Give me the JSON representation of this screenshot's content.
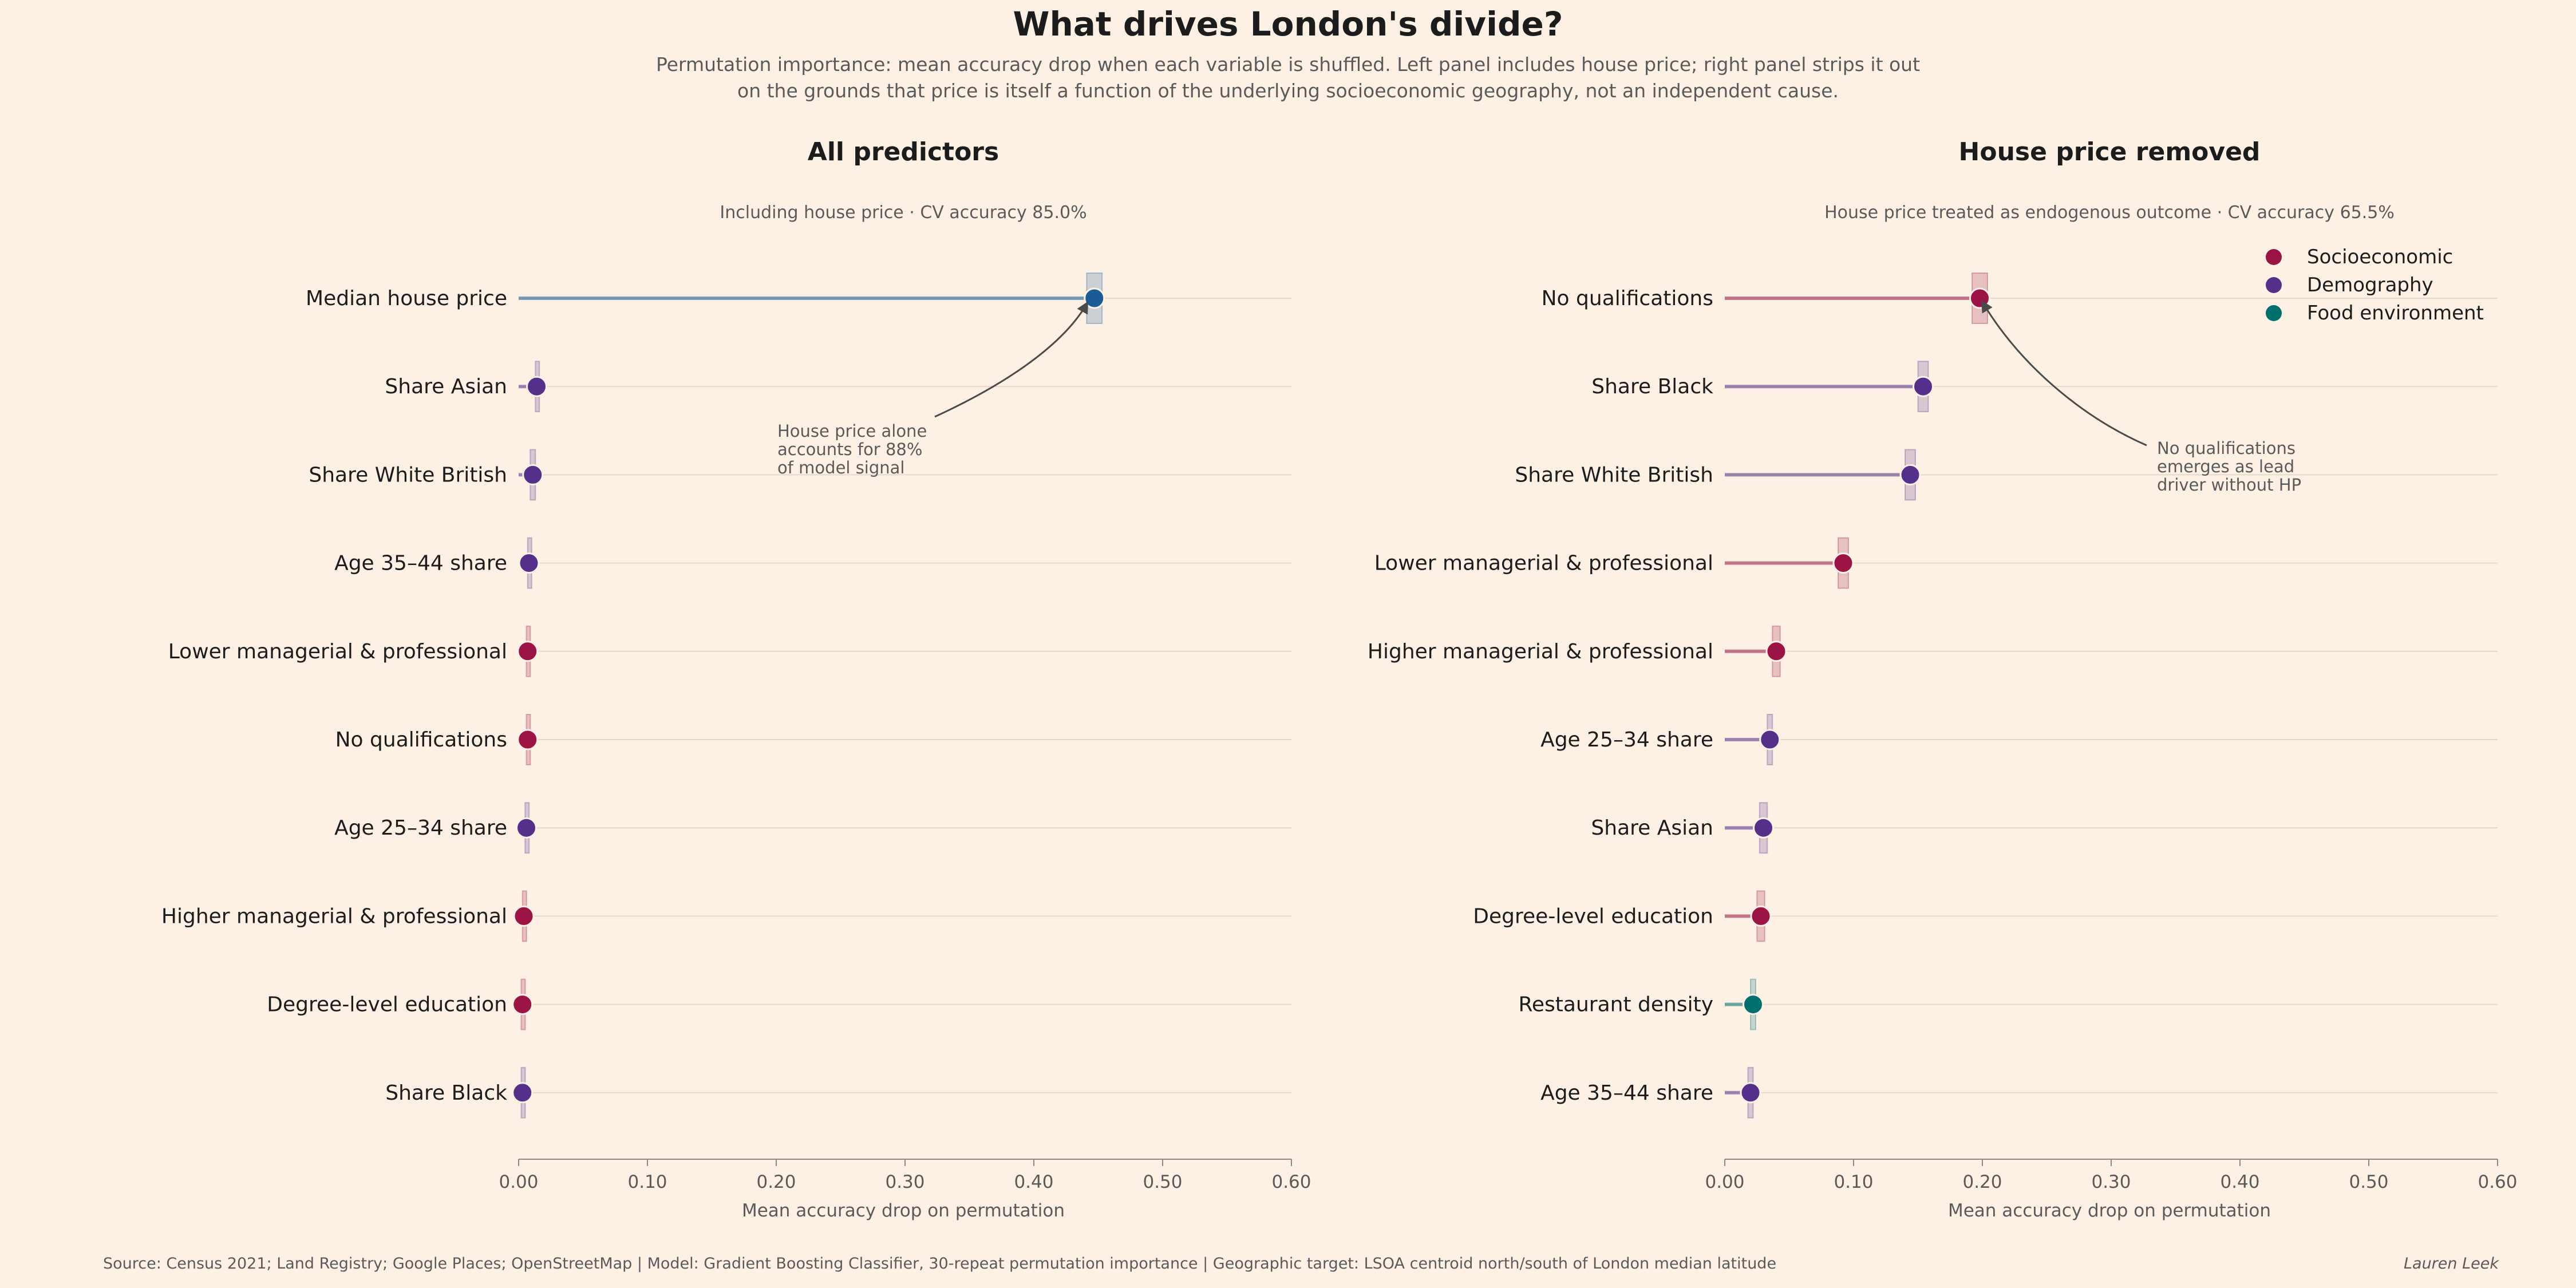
{
  "title": "What drives London's divide?",
  "subtitle_lines": [
    "Permutation importance: mean accuracy drop when each variable is shuffled.  Left panel includes house price; right panel strips it out",
    "on the grounds that price is itself a function of the underlying socioeconomic geography, not an independent cause."
  ],
  "source": "Source: Census 2021; Land Registry; Google Places; OpenStreetMap  | Model: Gradient Boosting Classifier, 30-repeat permutation importance  | Geographic target: LSOA centroid north/south of London median latitude",
  "author": "Lauren Leek",
  "colors": {
    "Socioeconomic": "#9c1446",
    "Demography": "#55308a",
    "Food environment": "#00706e",
    "House price": "#1a5a96"
  },
  "legend": {
    "placement": "top-right",
    "entries": [
      "Socioeconomic",
      "Demography",
      "Food environment"
    ]
  },
  "chart_data": [
    {
      "type": "dot",
      "title": "All predictors",
      "subtitle": "Including house price  ·  CV accuracy 85.0%",
      "xlabel": "Mean accuracy drop on permutation",
      "xlim": [
        0,
        0.6
      ],
      "xticks": [
        "0.00",
        "0.10",
        "0.20",
        "0.30",
        "0.40",
        "0.50",
        "0.60"
      ],
      "grid": true,
      "categories": [
        "Median house price",
        "Share Asian",
        "Share White British",
        "Age 35–44 share",
        "Lower managerial & professional",
        "No qualifications",
        "Age 25–34 share",
        "Higher managerial & professional",
        "Degree-level education",
        "Share Black"
      ],
      "groups": [
        "House price",
        "Demography",
        "Demography",
        "Demography",
        "Socioeconomic",
        "Socioeconomic",
        "Demography",
        "Socioeconomic",
        "Socioeconomic",
        "Demography"
      ],
      "values": [
        0.447,
        0.014,
        0.011,
        0.008,
        0.007,
        0.007,
        0.006,
        0.004,
        0.003,
        0.003
      ],
      "errors": [
        0.006,
        0.001,
        0.002,
        0.001,
        0.001,
        0.001,
        0.001,
        0.001,
        0.001,
        0.001
      ],
      "annotation": {
        "lines": [
          "House price alone",
          "accounts for 88%",
          "of model signal"
        ],
        "target_index": 0
      }
    },
    {
      "type": "dot",
      "title": "House price removed",
      "subtitle": "House price treated as endogenous outcome  ·  CV accuracy 65.5%",
      "xlabel": "Mean accuracy drop on permutation",
      "xlim": [
        0,
        0.6
      ],
      "xticks": [
        "0.00",
        "0.10",
        "0.20",
        "0.30",
        "0.40",
        "0.50",
        "0.60"
      ],
      "grid": true,
      "categories": [
        "No qualifications",
        "Share Black",
        "Share White British",
        "Lower managerial & professional",
        "Higher managerial & professional",
        "Age 25–34 share",
        "Share Asian",
        "Degree-level education",
        "Restaurant density",
        "Age 35–44 share"
      ],
      "groups": [
        "Socioeconomic",
        "Demography",
        "Demography",
        "Socioeconomic",
        "Socioeconomic",
        "Demography",
        "Demography",
        "Socioeconomic",
        "Food environment",
        "Demography"
      ],
      "values": [
        0.198,
        0.154,
        0.144,
        0.092,
        0.04,
        0.035,
        0.03,
        0.028,
        0.022,
        0.02
      ],
      "errors": [
        0.006,
        0.004,
        0.004,
        0.004,
        0.003,
        0.002,
        0.003,
        0.003,
        0.002,
        0.002
      ],
      "annotation": {
        "lines": [
          "No qualifications",
          "emerges as lead",
          "driver without HP"
        ],
        "target_index": 0
      }
    }
  ]
}
